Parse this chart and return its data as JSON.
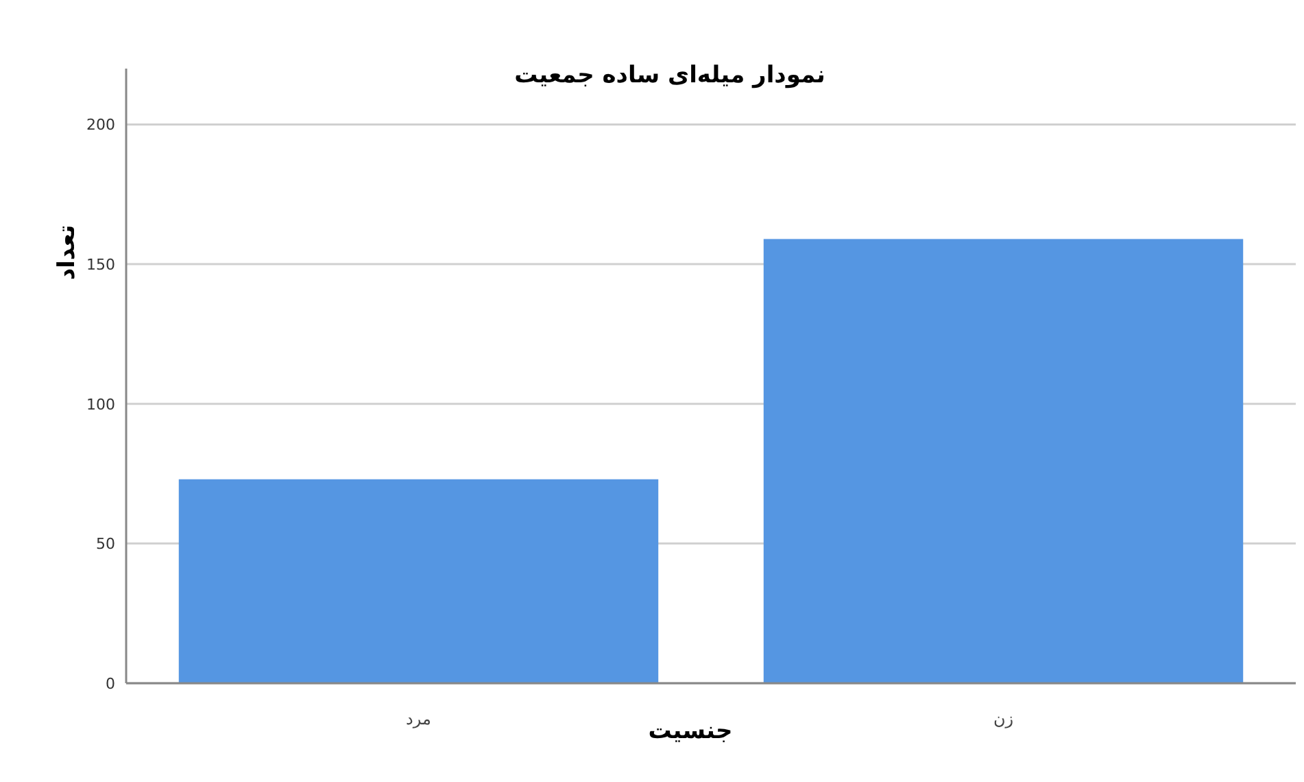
{
  "chart_data": {
    "type": "bar",
    "title": "نمودار میله‌ای ساده جمعیت",
    "xlabel": "جنسیت",
    "ylabel": "تعداد",
    "categories": [
      "مرد",
      "زن"
    ],
    "values": [
      73,
      159
    ],
    "color": "#5596e2",
    "ylim": [
      0,
      220
    ],
    "yticks": [
      0,
      50,
      100,
      150,
      200
    ],
    "grid": "y"
  }
}
